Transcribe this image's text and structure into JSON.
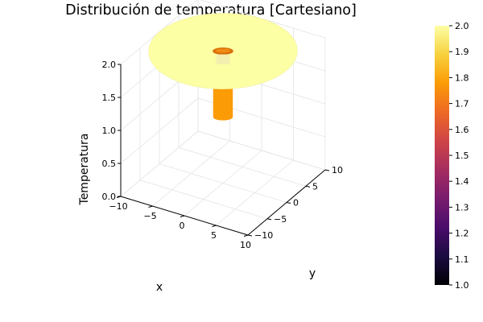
{
  "chart_data": {
    "type": "surface3d",
    "title": "Distribución de temperatura [Cartesiano]",
    "xlabel": "x",
    "ylabel": "y",
    "zlabel": "Temperatura",
    "xlim": [
      -10,
      10
    ],
    "ylim": [
      -10,
      10
    ],
    "zlim": [
      0,
      2
    ],
    "x_ticks": [
      {
        "v": -10,
        "label": "−10"
      },
      {
        "v": -5,
        "label": "−5"
      },
      {
        "v": 0,
        "label": "0"
      },
      {
        "v": 5,
        "label": "5"
      },
      {
        "v": 10,
        "label": "10"
      }
    ],
    "y_ticks": [
      {
        "v": -10,
        "label": "−10"
      },
      {
        "v": -5,
        "label": "−5"
      },
      {
        "v": 0,
        "label": "0"
      },
      {
        "v": 5,
        "label": "5"
      },
      {
        "v": 10,
        "label": "10"
      }
    ],
    "z_ticks": [
      {
        "v": 0,
        "label": "0.0"
      },
      {
        "v": 0.5,
        "label": "0.5"
      },
      {
        "v": 1,
        "label": "1.0"
      },
      {
        "v": 1.5,
        "label": "1.5"
      },
      {
        "v": 2,
        "label": "2.0"
      }
    ],
    "surface": {
      "outer_radius": 10,
      "inner_radius": 1,
      "outer_temperature": 2.0,
      "inner_temperature": 1.8,
      "inner_z_range": [
        1.0,
        1.8
      ]
    },
    "colorbar": {
      "colormap": "inferno",
      "range": [
        1.0,
        2.0
      ],
      "ticks": [
        "1.0",
        "1.1",
        "1.2",
        "1.3",
        "1.4",
        "1.5",
        "1.6",
        "1.7",
        "1.8",
        "1.9",
        "2.0"
      ],
      "colors": [
        "#000004",
        "#1b0c41",
        "#4a0c6b",
        "#781c6d",
        "#a52c60",
        "#cf4446",
        "#ed6925",
        "#fb9b06",
        "#f7d13d",
        "#fcffa4"
      ]
    },
    "grid": true
  }
}
